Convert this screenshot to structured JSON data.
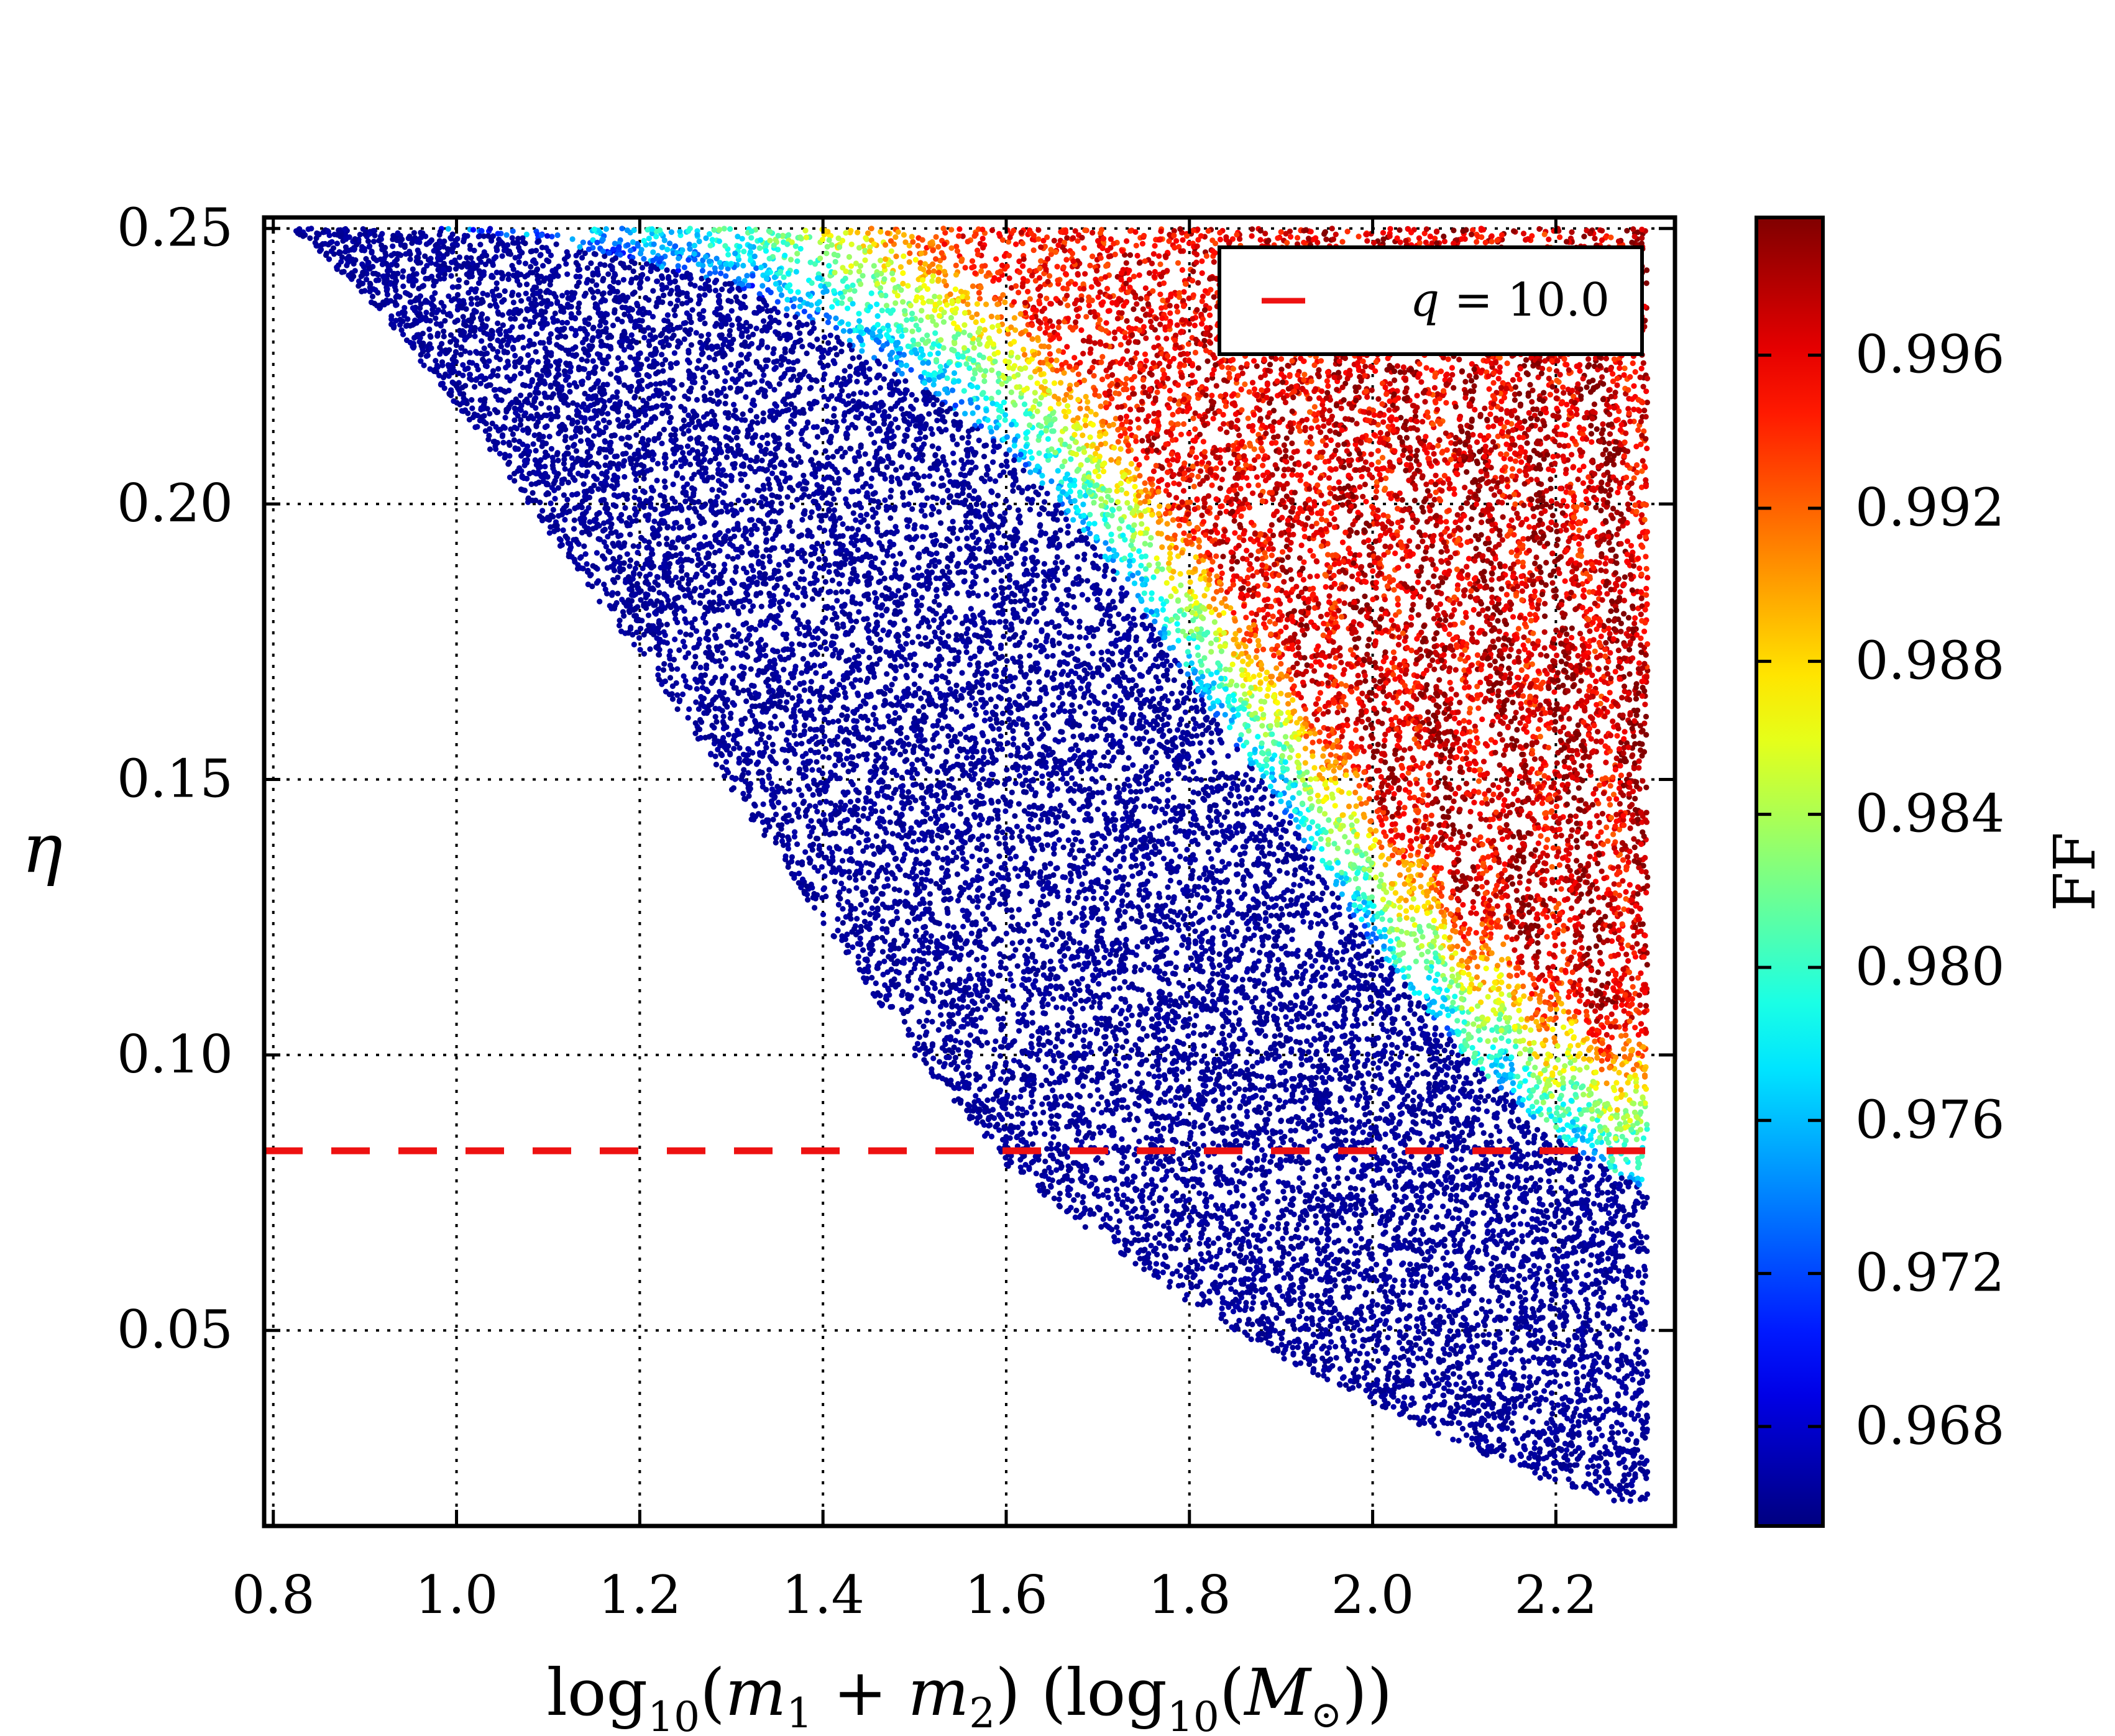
{
  "chart_data": {
    "type": "scatter",
    "title": "",
    "xlabel": {
      "prefix": "log",
      "sub1": "10",
      "mid1": "(",
      "m1": "m",
      "m1sub": "1",
      "plus": " + ",
      "m2": "m",
      "m2sub": "2",
      "mid2": ") (log",
      "sub2": "10",
      "mid3": "(",
      "M": "M",
      "Msub": "⊙",
      "end": "))"
    },
    "ylabel": "η",
    "colorbar_label": "FF",
    "xlim": [
      0.79,
      2.33
    ],
    "ylim": [
      0.0145,
      0.252
    ],
    "xticks": [
      0.8,
      1.0,
      1.2,
      1.4,
      1.6,
      1.8,
      2.0,
      2.2
    ],
    "xtick_labels": [
      "0.8",
      "1.0",
      "1.2",
      "1.4",
      "1.6",
      "1.8",
      "2.0",
      "2.2"
    ],
    "yticks": [
      0.05,
      0.1,
      0.15,
      0.2,
      0.25
    ],
    "ytick_labels": [
      "0.05",
      "0.10",
      "0.15",
      "0.20",
      "0.25"
    ],
    "grid": true,
    "grid_style": "dotted",
    "legend": {
      "placement": "top-right",
      "entries": [
        {
          "prefix": "q",
          "label": " = 10.0",
          "color": "#ee1111",
          "style": "dashed"
        }
      ]
    },
    "reference_line": {
      "orientation": "horizontal",
      "y": 0.0826,
      "color": "#ee1111",
      "style": "dashed",
      "label": "q = 10.0"
    },
    "colorbar": {
      "colormap": "jet",
      "clim": [
        0.9654,
        0.9996
      ],
      "ticks": [
        0.968,
        0.972,
        0.976,
        0.98,
        0.984,
        0.988,
        0.992,
        0.996
      ],
      "tick_labels": [
        "0.968",
        "0.972",
        "0.976",
        "0.980",
        "0.984",
        "0.988",
        "0.992",
        "0.996"
      ]
    },
    "point_cloud": {
      "point_count": 26000,
      "x_range": [
        0.82,
        2.3
      ],
      "eta_max": 0.25,
      "lower_boundary": [
        [
          0.82,
          0.25
        ],
        [
          0.9,
          0.238
        ],
        [
          1.0,
          0.218
        ],
        [
          1.1,
          0.195
        ],
        [
          1.2,
          0.172
        ],
        [
          1.3,
          0.148
        ],
        [
          1.4,
          0.124
        ],
        [
          1.5,
          0.1
        ],
        [
          1.6,
          0.08
        ],
        [
          1.7,
          0.067
        ],
        [
          1.8,
          0.055
        ],
        [
          1.9,
          0.045
        ],
        [
          2.0,
          0.037
        ],
        [
          2.1,
          0.029
        ],
        [
          2.2,
          0.022
        ],
        [
          2.3,
          0.017
        ]
      ],
      "fit_boundary": [
        [
          0.95,
          0.25
        ],
        [
          1.1,
          0.248
        ],
        [
          1.3,
          0.24
        ],
        [
          1.4,
          0.232
        ],
        [
          1.5,
          0.222
        ],
        [
          1.6,
          0.21
        ],
        [
          1.7,
          0.192
        ],
        [
          1.8,
          0.168
        ],
        [
          1.9,
          0.145
        ],
        [
          2.0,
          0.12
        ],
        [
          2.1,
          0.1
        ],
        [
          2.2,
          0.085
        ],
        [
          2.3,
          0.075
        ]
      ],
      "notches": [
        {
          "x_tip": 1.86,
          "y_center": 0.138,
          "half_width": 0.03
        },
        {
          "x_tip": 1.84,
          "y_center": 0.11,
          "half_width": 0.022
        }
      ]
    }
  }
}
